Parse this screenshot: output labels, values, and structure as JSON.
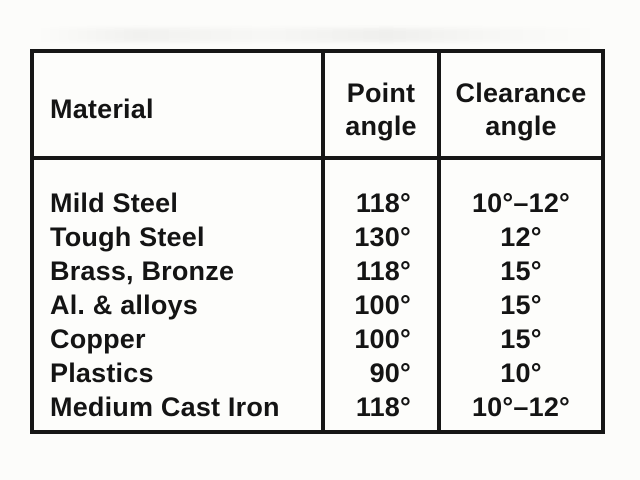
{
  "page": {
    "kind": "scanned printed table",
    "background_color": "#fcfcfa",
    "ink_color": "#161616"
  },
  "table": {
    "headers": {
      "material": "Material",
      "point_angle": "Point angle",
      "clearance_angle": "Clearance angle"
    },
    "rows": [
      {
        "material": "Mild Steel",
        "point_angle": "118°",
        "clearance_angle": "10°–12°"
      },
      {
        "material": "Tough Steel",
        "point_angle": "130°",
        "clearance_angle": "12°"
      },
      {
        "material": "Brass, Bronze",
        "point_angle": "118°",
        "clearance_angle": "15°"
      },
      {
        "material": "Al. & alloys",
        "point_angle": "100°",
        "clearance_angle": "15°"
      },
      {
        "material": "Copper",
        "point_angle": "100°",
        "clearance_angle": "15°"
      },
      {
        "material": "Plastics",
        "point_angle": "90°",
        "clearance_angle": "10°"
      },
      {
        "material": "Medium Cast Iron",
        "point_angle": "118°",
        "clearance_angle": "10°–12°"
      }
    ]
  }
}
